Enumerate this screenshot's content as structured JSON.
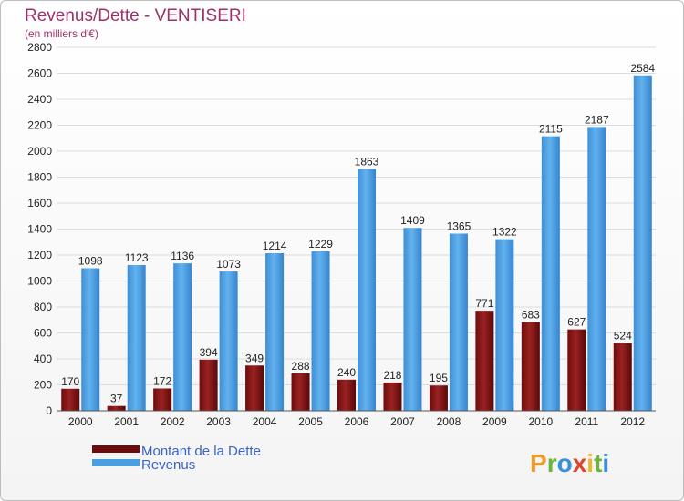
{
  "chart_data": {
    "type": "bar",
    "title": "Revenus/Dette - VENTISERI",
    "subtitle": "(en milliers d'€)",
    "categories": [
      "2000",
      "2001",
      "2002",
      "2003",
      "2004",
      "2005",
      "2006",
      "2007",
      "2008",
      "2009",
      "2010",
      "2011",
      "2012"
    ],
    "series": [
      {
        "name": "Montant de la Dette",
        "color": "#8b1a1a",
        "values": [
          170,
          37,
          172,
          394,
          349,
          288,
          240,
          218,
          195,
          771,
          683,
          627,
          524
        ]
      },
      {
        "name": "Revenus",
        "color": "#4a9fe3",
        "values": [
          1098,
          1123,
          1136,
          1073,
          1214,
          1229,
          1863,
          1409,
          1365,
          1322,
          2115,
          2187,
          2584
        ]
      }
    ],
    "ylim": [
      0,
      2800
    ],
    "yticks": [
      0,
      200,
      400,
      600,
      800,
      1000,
      1200,
      1400,
      1600,
      1800,
      2000,
      2200,
      2400,
      2600,
      2800
    ],
    "grid": true,
    "legend_position": "bottom-left"
  },
  "logo": {
    "text": "Proxiti",
    "letters": [
      "P",
      "r",
      "o",
      "x",
      "i",
      "t",
      "i"
    ]
  }
}
